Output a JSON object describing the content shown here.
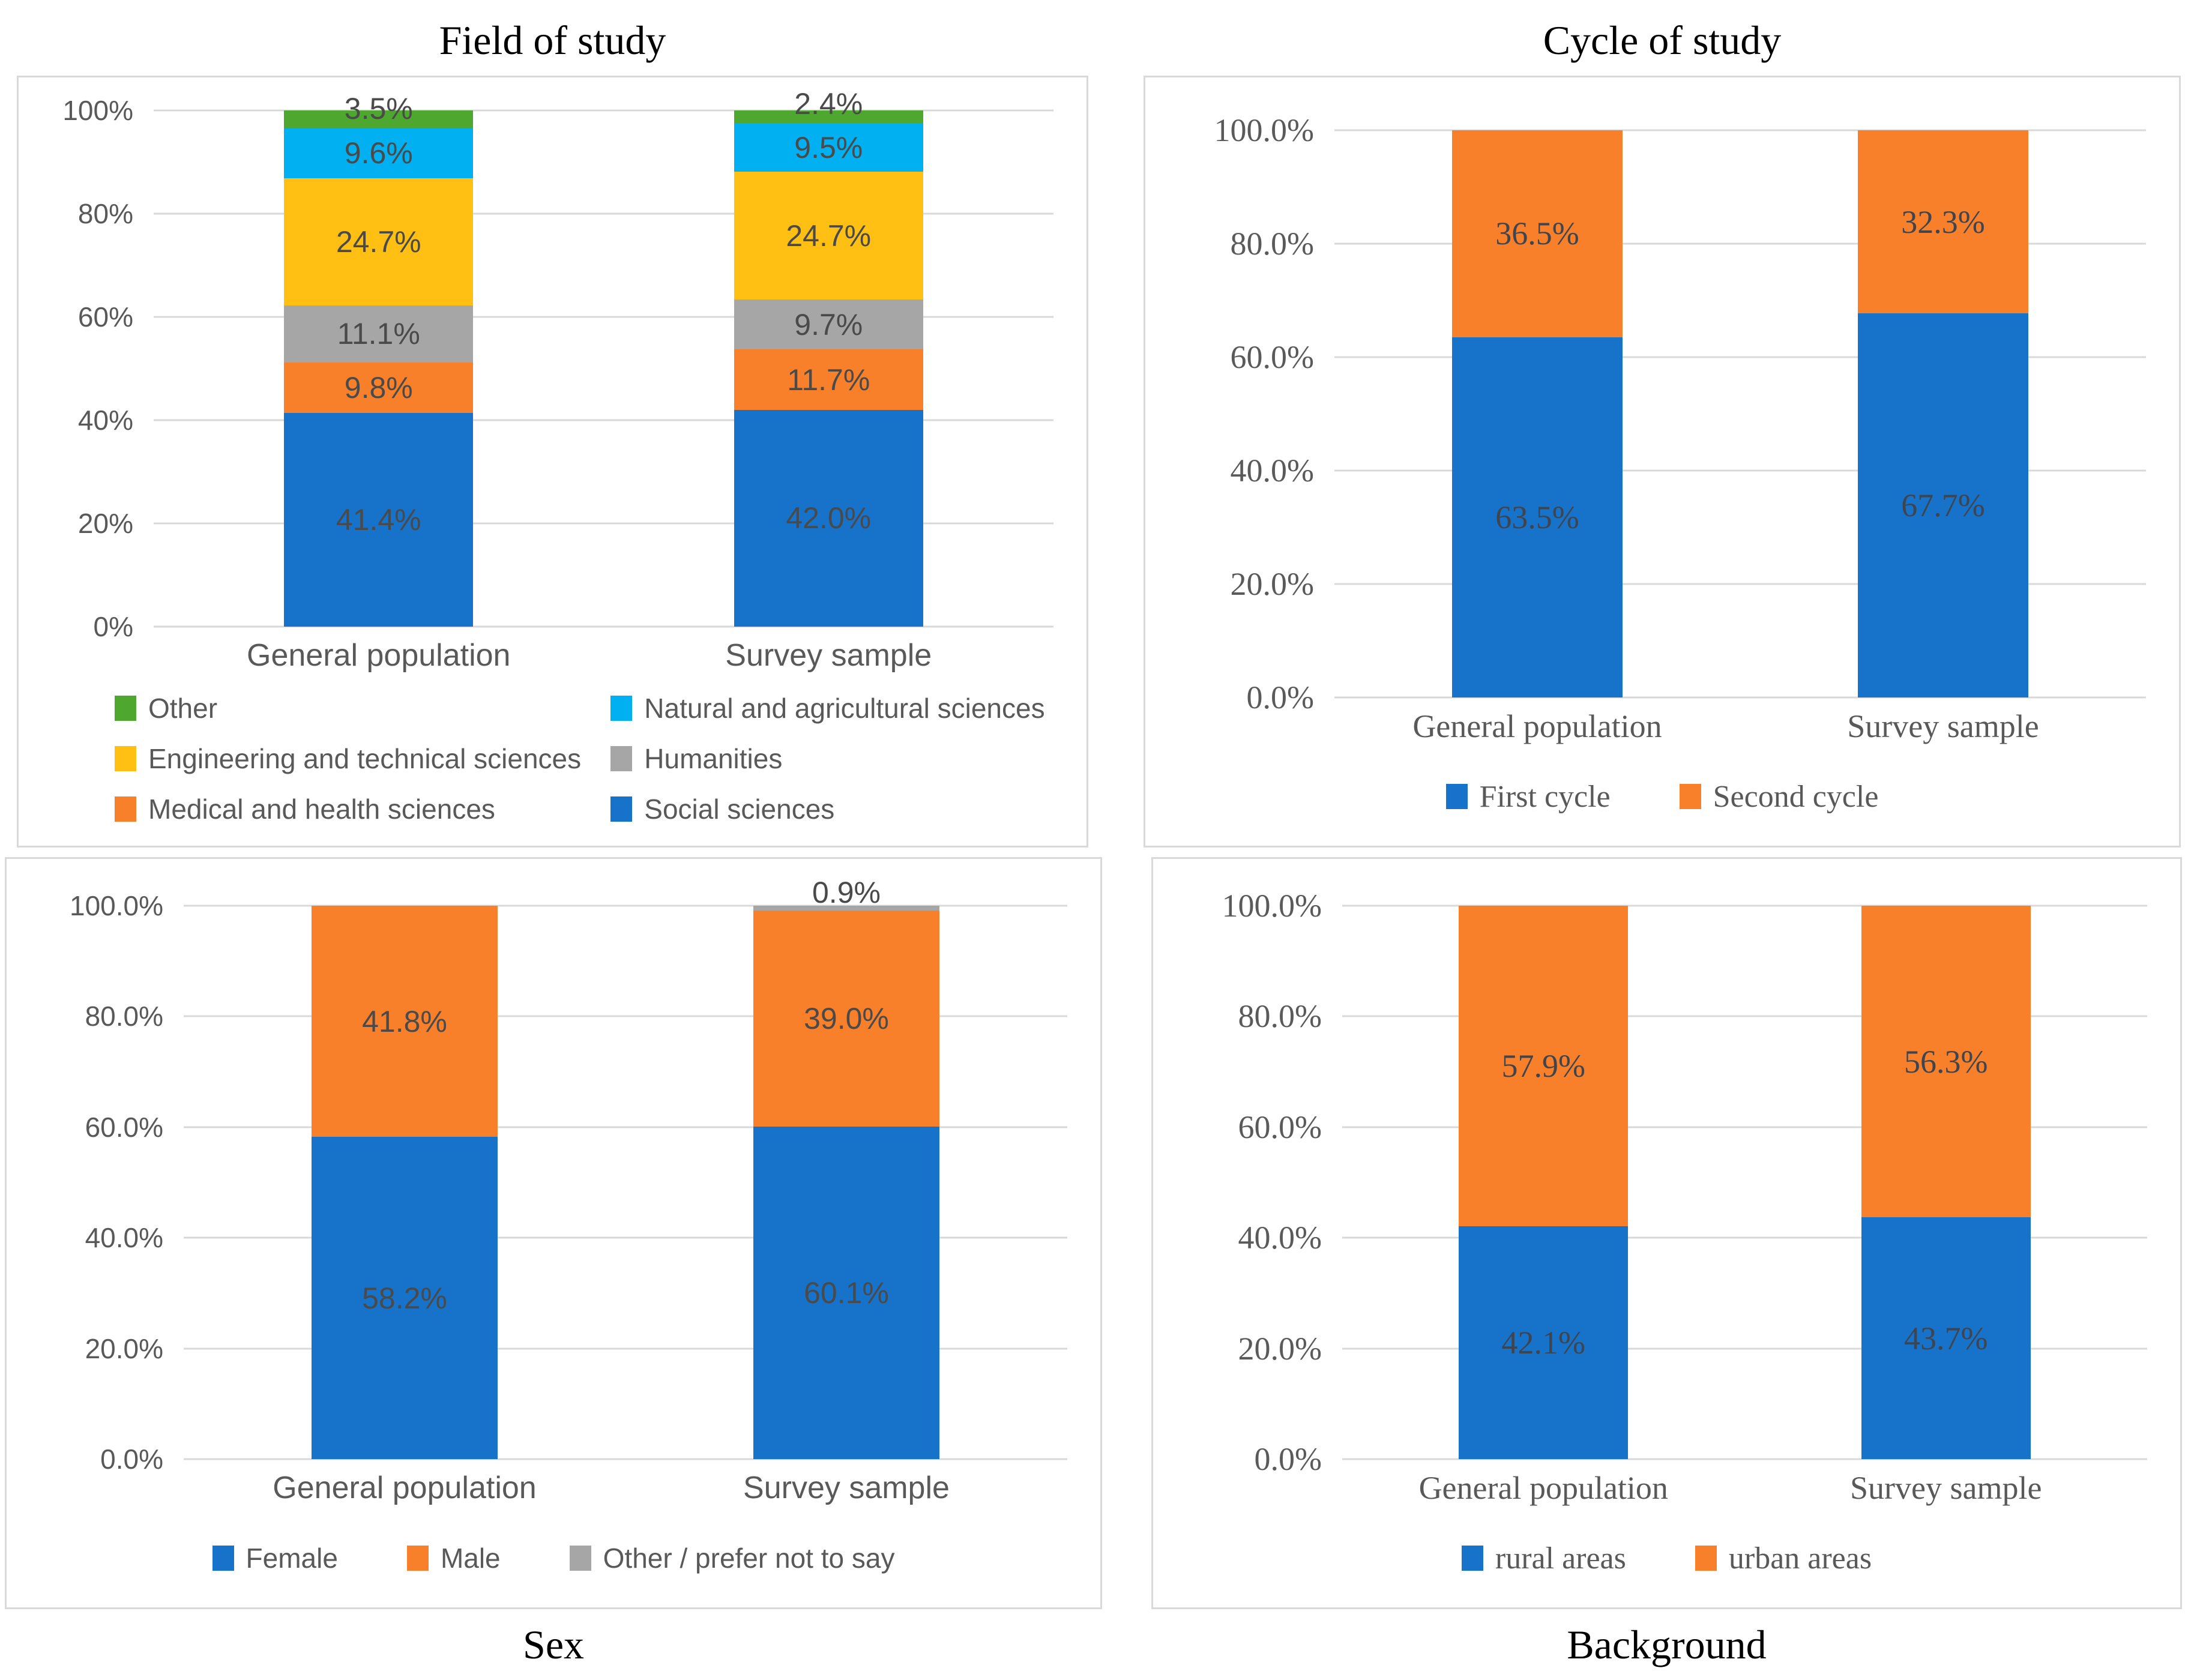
{
  "colors": {
    "blue": "#1772C9",
    "orange": "#F8802A",
    "gray": "#A6A6A6",
    "yellow": "#FFC013",
    "cyan": "#00B0F0",
    "green": "#4EA72E",
    "grid": "#D9D9D9",
    "panel_border": "#D9D9D9",
    "tick_text": "#595959",
    "category_text": "#595959",
    "title_text": "#000000"
  },
  "chart_data": [
    {
      "id": "field-of-study",
      "type": "bar",
      "subtype": "stacked-100",
      "title": "Field of study",
      "title_position": "above",
      "grid": true,
      "ylim": [
        0,
        100
      ],
      "y_ticks": [
        "100%",
        "80%",
        "60%",
        "40%",
        "20%",
        "0%"
      ],
      "categories": [
        "General population",
        "Survey sample"
      ],
      "series": [
        {
          "name": "Social sciences",
          "color_key": "blue",
          "values": [
            41.4,
            42.0
          ]
        },
        {
          "name": "Medical and health sciences",
          "color_key": "orange",
          "values": [
            9.8,
            11.7
          ]
        },
        {
          "name": "Humanities",
          "color_key": "gray",
          "values": [
            11.1,
            9.7
          ]
        },
        {
          "name": "Engineering and technical sciences",
          "color_key": "yellow",
          "values": [
            24.7,
            24.7
          ]
        },
        {
          "name": "Natural and agricultural sciences",
          "color_key": "cyan",
          "values": [
            9.6,
            9.5
          ]
        },
        {
          "name": "Other",
          "color_key": "green",
          "values": [
            3.5,
            2.4
          ]
        }
      ],
      "legend": {
        "position": "bottom-left",
        "layout": "grid-2col",
        "items": [
          {
            "label": "Other",
            "color_key": "green"
          },
          {
            "label": "Natural and agricultural sciences",
            "color_key": "cyan"
          },
          {
            "label": "Engineering and technical sciences",
            "color_key": "yellow"
          },
          {
            "label": "Humanities",
            "color_key": "gray"
          },
          {
            "label": "Medical and health sciences",
            "color_key": "orange"
          },
          {
            "label": "Social sciences",
            "color_key": "blue"
          }
        ]
      }
    },
    {
      "id": "cycle-of-study",
      "type": "bar",
      "subtype": "stacked-100",
      "title": "Cycle of study",
      "title_position": "above",
      "grid": true,
      "ylim": [
        0,
        100
      ],
      "y_ticks": [
        "100.0%",
        "80.0%",
        "60.0%",
        "40.0%",
        "20.0%",
        "0.0%"
      ],
      "categories": [
        "General population",
        "Survey sample"
      ],
      "series": [
        {
          "name": "First cycle",
          "color_key": "blue",
          "values": [
            63.5,
            67.7
          ]
        },
        {
          "name": "Second cycle",
          "color_key": "orange",
          "values": [
            36.5,
            32.3
          ]
        }
      ],
      "legend": {
        "position": "bottom-center",
        "layout": "row",
        "items": [
          {
            "label": "First cycle",
            "color_key": "blue"
          },
          {
            "label": "Second cycle",
            "color_key": "orange"
          }
        ]
      }
    },
    {
      "id": "sex",
      "type": "bar",
      "subtype": "stacked-100",
      "title": "Sex",
      "title_position": "below",
      "grid": true,
      "ylim": [
        0,
        100
      ],
      "y_ticks": [
        "100.0%",
        "80.0%",
        "60.0%",
        "40.0%",
        "20.0%",
        "0.0%"
      ],
      "categories": [
        "General population",
        "Survey sample"
      ],
      "series": [
        {
          "name": "Female",
          "color_key": "blue",
          "values": [
            58.2,
            60.1
          ]
        },
        {
          "name": "Male",
          "color_key": "orange",
          "values": [
            41.8,
            39.0
          ]
        },
        {
          "name": "Other / prefer not to say",
          "color_key": "gray",
          "values": [
            0,
            0.9
          ]
        }
      ],
      "legend": {
        "position": "bottom-center",
        "layout": "row",
        "items": [
          {
            "label": "Female",
            "color_key": "blue"
          },
          {
            "label": "Male",
            "color_key": "orange"
          },
          {
            "label": "Other / prefer not to say",
            "color_key": "gray"
          }
        ]
      }
    },
    {
      "id": "background",
      "type": "bar",
      "subtype": "stacked-100",
      "title": "Background",
      "title_position": "below",
      "grid": true,
      "ylim": [
        0,
        100
      ],
      "y_ticks": [
        "100.0%",
        "80.0%",
        "60.0%",
        "40.0%",
        "20.0%",
        "0.0%"
      ],
      "categories": [
        "General population",
        "Survey sample"
      ],
      "series": [
        {
          "name": "rural areas",
          "color_key": "blue",
          "values": [
            42.1,
            43.7
          ]
        },
        {
          "name": "urban areas",
          "color_key": "orange",
          "values": [
            57.9,
            56.3
          ]
        }
      ],
      "legend": {
        "position": "bottom-center",
        "layout": "row",
        "items": [
          {
            "label": "rural areas",
            "color_key": "blue"
          },
          {
            "label": "urban areas",
            "color_key": "orange"
          }
        ]
      }
    }
  ]
}
